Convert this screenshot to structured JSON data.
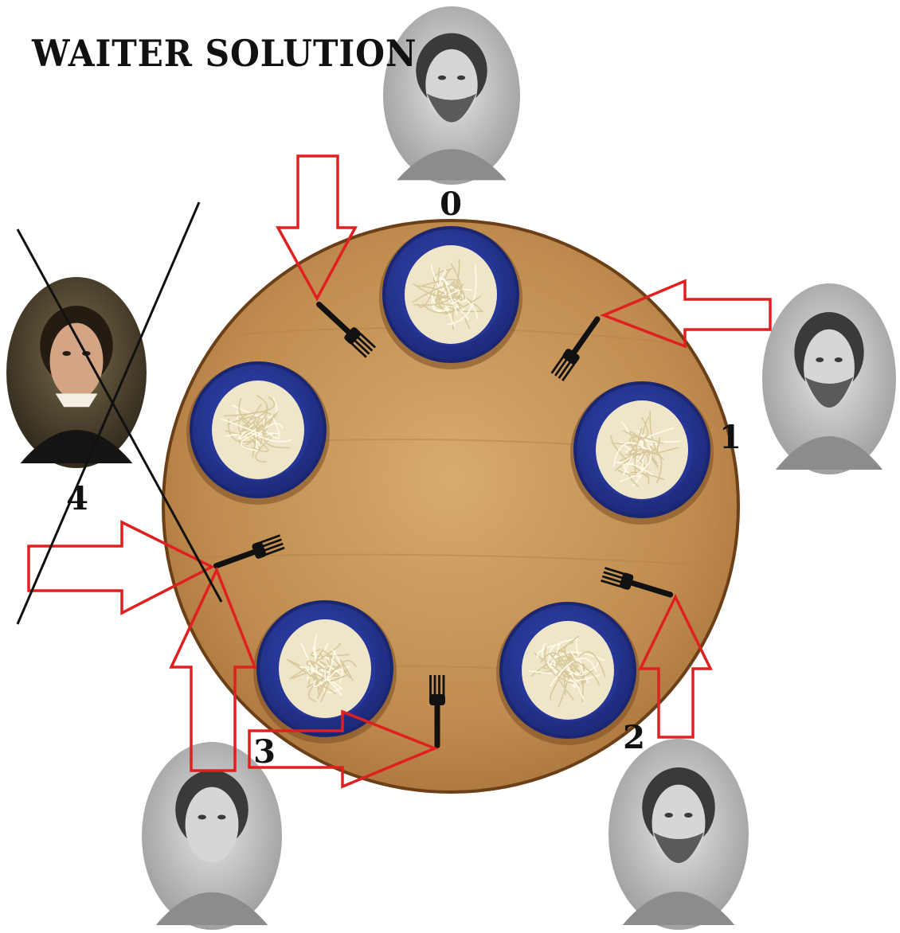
{
  "title": "WAITER SOLUTION",
  "colors": {
    "table": "#c89a5c",
    "table_edge": "#6b3f17",
    "plate": "#27379a",
    "plate_rim": "#1b2670",
    "pasta": "#efe6c9",
    "fork": "#111111",
    "arrow": "#e02020",
    "cross": "#111111"
  },
  "philosophers": [
    {
      "id": 0,
      "label": "0",
      "icon": "bearded-philosopher-bust-portrait",
      "crossed_out": false
    },
    {
      "id": 1,
      "label": "1",
      "icon": "bearded-mask-portrait",
      "crossed_out": false
    },
    {
      "id": 2,
      "label": "2",
      "icon": "socrates-bust-portrait",
      "crossed_out": false
    },
    {
      "id": 3,
      "label": "3",
      "icon": "wigged-man-engraving-portrait",
      "crossed_out": false
    },
    {
      "id": 4,
      "label": "4",
      "icon": "descartes-painting-portrait",
      "crossed_out": true
    }
  ],
  "plates": [
    {
      "seat": 0,
      "icon": "spaghetti-plate-icon"
    },
    {
      "seat": 1,
      "icon": "spaghetti-plate-icon"
    },
    {
      "seat": 2,
      "icon": "spaghetti-plate-icon"
    },
    {
      "seat": 3,
      "icon": "spaghetti-plate-icon"
    },
    {
      "seat": 4,
      "icon": "spaghetti-plate-icon"
    }
  ],
  "forks": [
    {
      "between": [
        4,
        0
      ],
      "icon": "fork-icon"
    },
    {
      "between": [
        0,
        1
      ],
      "icon": "fork-icon"
    },
    {
      "between": [
        1,
        2
      ],
      "icon": "fork-icon"
    },
    {
      "between": [
        2,
        3
      ],
      "icon": "fork-icon"
    },
    {
      "between": [
        3,
        4
      ],
      "icon": "fork-icon"
    }
  ],
  "arrows": [
    {
      "from": 0,
      "to_fork": 0,
      "icon": "arrow-down-icon"
    },
    {
      "from": 1,
      "to_fork": 1,
      "icon": "arrow-left-icon"
    },
    {
      "from": 2,
      "to_fork": 2,
      "icon": "arrow-up-icon"
    },
    {
      "from": 3,
      "to_fork": 3,
      "icon": "arrow-right-icon"
    },
    {
      "from": 3,
      "to_fork": 4,
      "icon": "arrow-up-icon"
    },
    {
      "from": 4,
      "to_fork": 4,
      "icon": "arrow-right-icon"
    }
  ]
}
